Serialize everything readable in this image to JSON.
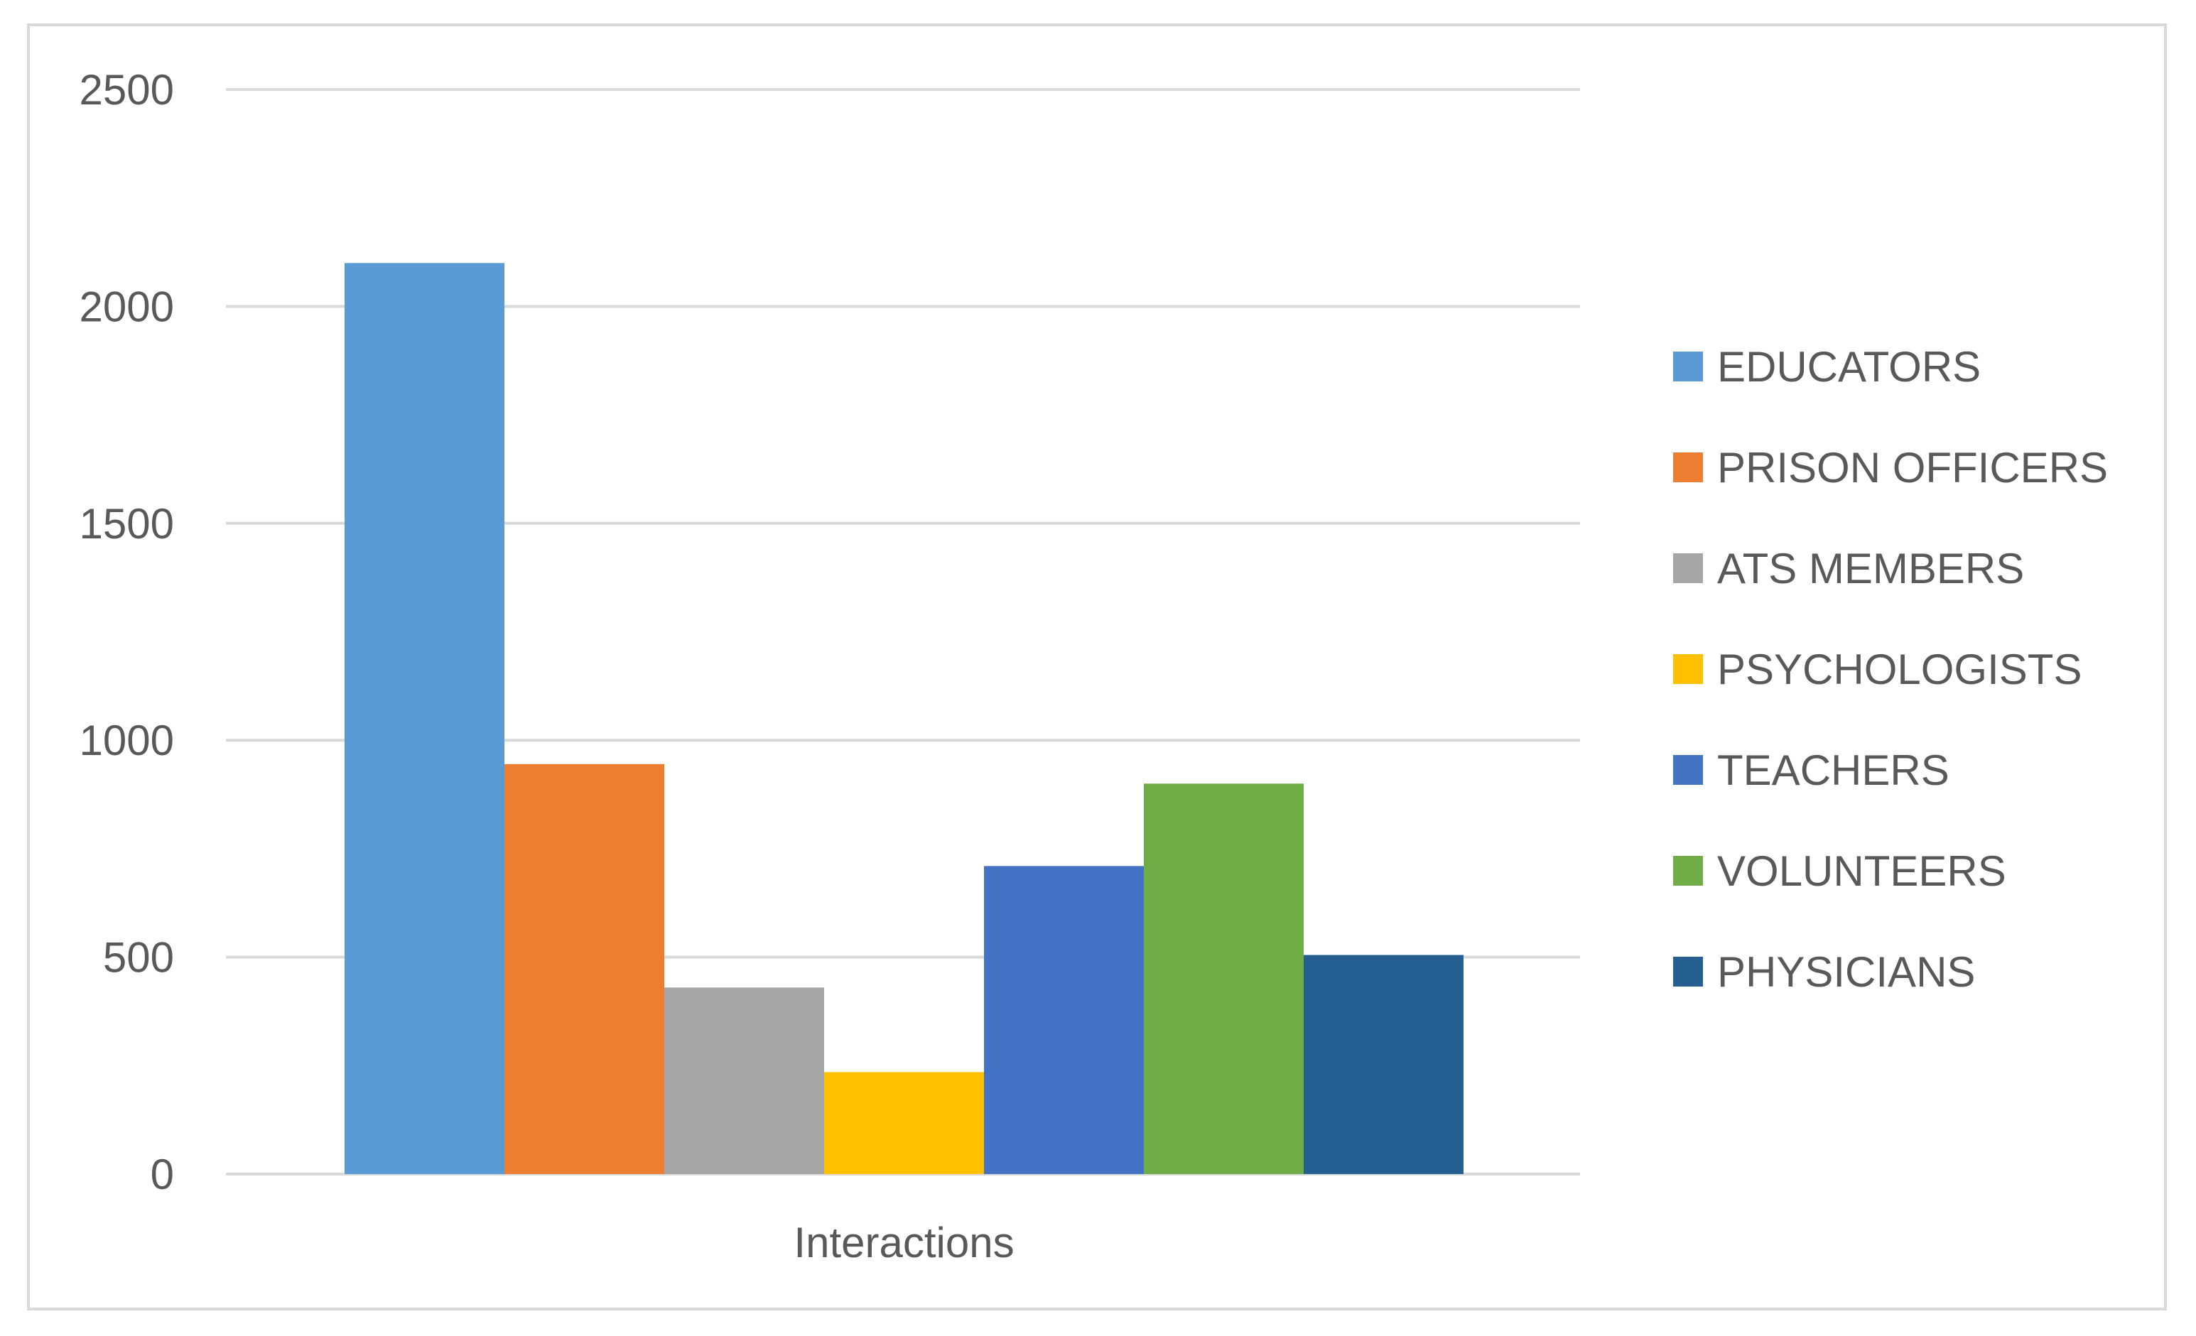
{
  "chart_data": {
    "type": "bar",
    "categories": [
      "Interactions"
    ],
    "series": [
      {
        "name": "EDUCATORS",
        "values": [
          2100
        ],
        "color": "#5B9BD5"
      },
      {
        "name": "PRISON OFFICERS",
        "values": [
          945
        ],
        "color": "#ED7D31"
      },
      {
        "name": "ATS MEMBERS",
        "values": [
          430
        ],
        "color": "#A5A5A5"
      },
      {
        "name": "PSYCHOLOGISTS",
        "values": [
          235
        ],
        "color": "#FFC000"
      },
      {
        "name": "TEACHERS",
        "values": [
          710
        ],
        "color": "#4472C4"
      },
      {
        "name": "VOLUNTEERS",
        "values": [
          900
        ],
        "color": "#70AD47"
      },
      {
        "name": "PHYSICIANS",
        "values": [
          505
        ],
        "color": "#255E91"
      }
    ],
    "yticks": [
      "0",
      "500",
      "1000",
      "1500",
      "2000",
      "2500"
    ],
    "ylim": [
      0,
      2500
    ],
    "title": "",
    "xlabel": "",
    "ylabel": "",
    "grid": true,
    "legend_position": "right"
  }
}
